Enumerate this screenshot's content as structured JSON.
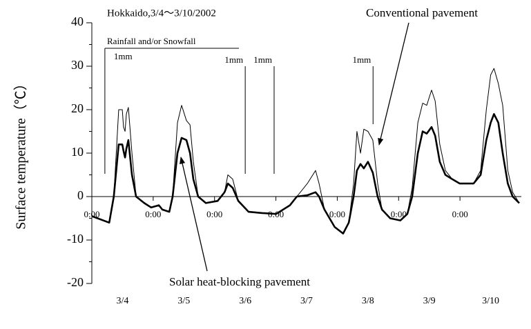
{
  "chart_data": {
    "type": "line",
    "title": "Hokkaido,3/4～3/10/2002",
    "y_label": "Surface temperature（℃）",
    "rain_label": "Rainfall and/or Snowfall",
    "rain_events": [
      {
        "x": 5.1,
        "label": "1mm"
      },
      {
        "x": 60,
        "label": "1mm"
      },
      {
        "x": 71.3,
        "label": "1mm"
      },
      {
        "x": 110,
        "label": "1mm"
      }
    ],
    "xlim": [
      0,
      168
    ],
    "xticks": [
      {
        "value": 0,
        "label": "0:00"
      },
      {
        "value": 24,
        "label": "0:00"
      },
      {
        "value": 48,
        "label": "0:00"
      },
      {
        "value": 72,
        "label": "0:00"
      },
      {
        "value": 96,
        "label": "0:00"
      },
      {
        "value": 120,
        "label": "0:00"
      },
      {
        "value": 144,
        "label": "0:00"
      }
    ],
    "day_ticks": [
      {
        "value": 12,
        "label": "3/4"
      },
      {
        "value": 36,
        "label": "3/5"
      },
      {
        "value": 60,
        "label": "3/6"
      },
      {
        "value": 84,
        "label": "3/7"
      },
      {
        "value": 108,
        "label": "3/8"
      },
      {
        "value": 132,
        "label": "3/9"
      },
      {
        "value": 156,
        "label": "3/10"
      }
    ],
    "ylim": [
      -20,
      40
    ],
    "yticks": [
      -20,
      -10,
      0,
      10,
      20,
      30,
      40
    ],
    "yticks_minor": [
      -15,
      -5,
      5,
      15,
      25,
      35
    ],
    "x": [
      0,
      6.8,
      8.6,
      10.5,
      11.9,
      12.4,
      13,
      13.5,
      14.3,
      15.7,
      17.3,
      20.5,
      23.2,
      26.2,
      27.6,
      30.3,
      31.6,
      33.5,
      35.1,
      37,
      38.4,
      39.7,
      41.6,
      44.6,
      49.2,
      51.9,
      53.2,
      55.1,
      57.3,
      61.3,
      66.7,
      72.1,
      77.5,
      80.2,
      84.3,
      87.5,
      88.9,
      91,
      95,
      98.3,
      100.5,
      102.4,
      103.7,
      105.1,
      106.4,
      108,
      109.9,
      111.8,
      113.5,
      116.7,
      120.7,
      123.4,
      125.3,
      127.5,
      129.4,
      131,
      132.9,
      134.3,
      136.1,
      138.3,
      141,
      143.9,
      146.6,
      149.3,
      152.1,
      154.3,
      156,
      157.3,
      159,
      160.7,
      162.7,
      164.6,
      167.2
    ],
    "series": [
      {
        "name": "Conventional pavement",
        "color": "#000000",
        "width": 1,
        "values": [
          -4.5,
          -6,
          0,
          20,
          20,
          16,
          15,
          19,
          20.5,
          10,
          0,
          -1.5,
          -2.5,
          -2,
          -3,
          -3.5,
          0,
          17,
          21,
          17.5,
          16.5,
          8,
          0,
          -1.5,
          -1,
          1,
          5,
          4,
          -1,
          -3.5,
          -3.8,
          -4,
          -2,
          0,
          3,
          6,
          3,
          -3,
          -7,
          -8.5,
          -6,
          3,
          15,
          10,
          15.5,
          15,
          13,
          3,
          -3,
          -5,
          -5.5,
          -4,
          2,
          17,
          21.5,
          21,
          24.5,
          22,
          12,
          6,
          4,
          3,
          3,
          3,
          6,
          20,
          28,
          29.5,
          26,
          21,
          6,
          1,
          -1.5
        ],
        "annotation_at": 110
      },
      {
        "name": "Solar heat-blocking pavement",
        "color": "#000000",
        "width": 2.6,
        "values": [
          -4.5,
          -6,
          0,
          12,
          12,
          10.5,
          9,
          11,
          13,
          5,
          0,
          -1.5,
          -2.5,
          -2,
          -3,
          -3.5,
          0,
          10,
          13.5,
          13,
          10,
          4,
          0,
          -1.5,
          -1,
          1,
          3,
          2,
          -1,
          -3.5,
          -3.8,
          -4,
          -2,
          0,
          0.3,
          1,
          0,
          -3,
          -7,
          -8.5,
          -6,
          0,
          6,
          7.5,
          6.5,
          8,
          5.5,
          0,
          -3,
          -5,
          -5.5,
          -4,
          0,
          10,
          15,
          14.5,
          16,
          14,
          8,
          5,
          4,
          3,
          3,
          3,
          5,
          13,
          17,
          19,
          17,
          10,
          3,
          0,
          -1.5
        ],
        "annotation_at": 35.1
      }
    ]
  }
}
